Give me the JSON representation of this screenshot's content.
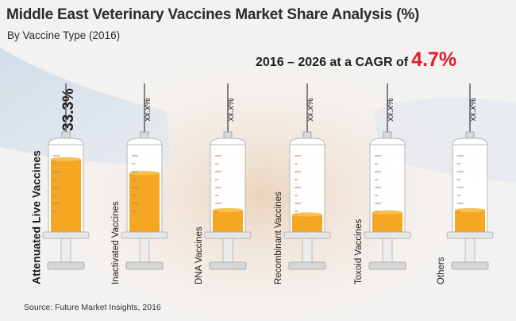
{
  "title": "Middle East Veterinary Vaccines Market Share Analysis (%)",
  "subtitle": "By Vaccine Type (2016)",
  "cagr": {
    "prefix": "2016 – 2026 at a CAGR of",
    "value": "4.7%"
  },
  "source": "Source: Future Market Insights, 2016",
  "colors": {
    "fill": "#f5a623",
    "fill_top": "#f9c04f",
    "cagr_value": "#e01d2b"
  },
  "chart_data": {
    "type": "bar",
    "title": "Middle East Veterinary Vaccines Market Share Analysis (%)",
    "subtitle": "By Vaccine Type (2016)",
    "categories": [
      "Attenuated Live Vaccines",
      "Inactivated Vaccines",
      "DNA Vaccines",
      "Recombinant Vaccines",
      "Toxoid Vaccines",
      "Others"
    ],
    "value_labels": [
      "33.3%",
      "xx.x%",
      "xx.x%",
      "xx.x%",
      "xx.x%",
      "xx.x%"
    ],
    "values": [
      33.3,
      27,
      10,
      8,
      9,
      10
    ],
    "ylim": [
      0,
      40
    ],
    "xlabel": "",
    "ylabel": "",
    "grid": false,
    "legend": "none"
  }
}
